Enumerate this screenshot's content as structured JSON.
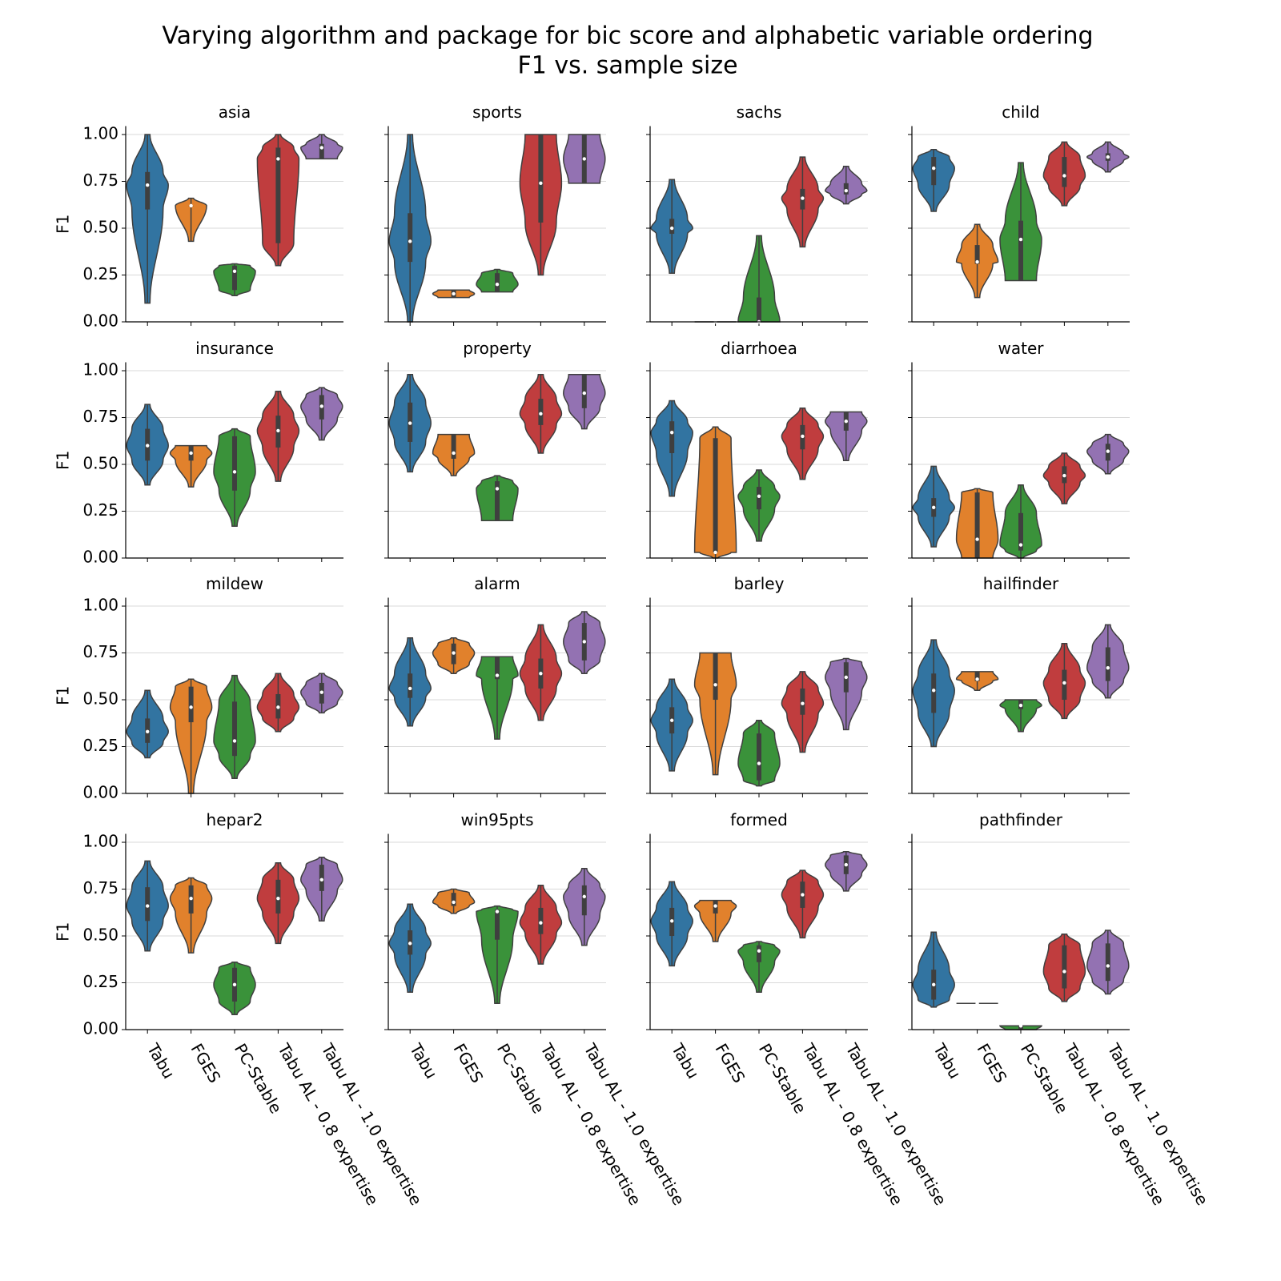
{
  "title": "Varying algorithm and package for bic score and alphabetic variable ordering",
  "subtitle": "F1 vs. sample size",
  "chart_data": [
    {
      "type": "violin",
      "title": "asia",
      "ylabel": "F1",
      "colors": [
        "#3274a1",
        "#e1812c",
        "#3a923a",
        "#c03d3e",
        "#9372b2"
      ],
      "ylim": [
        0,
        1.045
      ],
      "yticks": [
        {
          "value": 0,
          "label": "0.00"
        },
        {
          "value": 0.25,
          "label": "0.25"
        },
        {
          "value": 0.5,
          "label": "0.50"
        },
        {
          "value": 0.75,
          "label": "0.75"
        },
        {
          "value": 1,
          "label": "1.00"
        }
      ],
      "stats": [
        [
          0.1,
          0.6,
          0.73,
          0.8,
          1.0
        ],
        [
          0.43,
          0.62,
          0.62,
          0.62,
          0.66
        ],
        [
          0.14,
          0.17,
          0.27,
          0.3,
          0.31
        ],
        [
          0.3,
          0.42,
          0.87,
          0.93,
          1.0
        ],
        [
          0.87,
          0.87,
          0.93,
          0.95,
          1.0
        ]
      ]
    },
    {
      "type": "violin",
      "title": "sports",
      "colors": [
        "#3274a1",
        "#e1812c",
        "#3a923a",
        "#c03d3e",
        "#9372b2"
      ],
      "ylim": [
        0,
        1.045
      ],
      "yticks": [
        0,
        0.25,
        0.5,
        0.75,
        1
      ],
      "stats": [
        [
          0,
          0.32,
          0.43,
          0.58,
          1.0
        ],
        [
          0.13,
          0.13,
          0.15,
          0.17,
          0.17
        ],
        [
          0.16,
          0.16,
          0.2,
          0.26,
          0.28
        ],
        [
          0.25,
          0.53,
          0.74,
          1.0,
          1.0
        ],
        [
          0.74,
          0.74,
          0.87,
          1.0,
          1.0
        ]
      ]
    },
    {
      "type": "violin",
      "title": "sachs",
      "colors": [
        "#3274a1",
        "#e1812c",
        "#3a923a",
        "#c03d3e",
        "#9372b2"
      ],
      "ylim": [
        0,
        1.045
      ],
      "yticks": [
        0,
        0.25,
        0.5,
        0.75,
        1
      ],
      "stats": [
        [
          0.26,
          0.47,
          0.5,
          0.55,
          0.76
        ],
        [
          0,
          0,
          0,
          0,
          0
        ],
        [
          0,
          0,
          0,
          0.13,
          0.46
        ],
        [
          0.4,
          0.6,
          0.66,
          0.71,
          0.88
        ],
        [
          0.63,
          0.68,
          0.7,
          0.74,
          0.83
        ]
      ]
    },
    {
      "type": "violin",
      "title": "child",
      "colors": [
        "#3274a1",
        "#e1812c",
        "#3a923a",
        "#c03d3e",
        "#9372b2"
      ],
      "ylim": [
        0,
        1.045
      ],
      "yticks": [
        0,
        0.25,
        0.5,
        0.75,
        1
      ],
      "stats": [
        [
          0.59,
          0.73,
          0.82,
          0.88,
          0.92
        ],
        [
          0.13,
          0.31,
          0.32,
          0.41,
          0.52
        ],
        [
          0.22,
          0.22,
          0.44,
          0.54,
          0.85
        ],
        [
          0.62,
          0.72,
          0.78,
          0.88,
          0.96
        ],
        [
          0.8,
          0.86,
          0.88,
          0.9,
          0.96
        ]
      ]
    },
    {
      "type": "violin",
      "title": "insurance",
      "ylabel": "F1",
      "colors": [
        "#3274a1",
        "#e1812c",
        "#3a923a",
        "#c03d3e",
        "#9372b2"
      ],
      "ylim": [
        0,
        1.045
      ],
      "yticks": [
        {
          "value": 0,
          "label": "0.00"
        },
        {
          "value": 0.25,
          "label": "0.25"
        },
        {
          "value": 0.5,
          "label": "0.50"
        },
        {
          "value": 0.75,
          "label": "0.75"
        },
        {
          "value": 1,
          "label": "1.00"
        }
      ],
      "stats": [
        [
          0.39,
          0.52,
          0.6,
          0.69,
          0.82
        ],
        [
          0.38,
          0.52,
          0.56,
          0.6,
          0.6
        ],
        [
          0.17,
          0.36,
          0.46,
          0.65,
          0.69
        ],
        [
          0.41,
          0.59,
          0.68,
          0.76,
          0.89
        ],
        [
          0.63,
          0.74,
          0.81,
          0.87,
          0.91
        ]
      ]
    },
    {
      "type": "violin",
      "title": "property",
      "colors": [
        "#3274a1",
        "#e1812c",
        "#3a923a",
        "#c03d3e",
        "#9372b2"
      ],
      "ylim": [
        0,
        1.045
      ],
      "yticks": [
        0,
        0.25,
        0.5,
        0.75,
        1
      ],
      "stats": [
        [
          0.46,
          0.62,
          0.72,
          0.83,
          0.98
        ],
        [
          0.44,
          0.53,
          0.56,
          0.66,
          0.66
        ],
        [
          0.2,
          0.2,
          0.37,
          0.41,
          0.44
        ],
        [
          0.56,
          0.71,
          0.77,
          0.85,
          0.98
        ],
        [
          0.69,
          0.8,
          0.88,
          0.98,
          0.98
        ]
      ]
    },
    {
      "type": "violin",
      "title": "diarrhoea",
      "colors": [
        "#3274a1",
        "#e1812c",
        "#3a923a",
        "#c03d3e",
        "#9372b2"
      ],
      "ylim": [
        0,
        1.045
      ],
      "yticks": [
        0,
        0.25,
        0.5,
        0.75,
        1
      ],
      "stats": [
        [
          0.33,
          0.56,
          0.67,
          0.73,
          0.84
        ],
        [
          0,
          0.03,
          0.03,
          0.64,
          0.7
        ],
        [
          0.09,
          0.26,
          0.33,
          0.38,
          0.47
        ],
        [
          0.42,
          0.58,
          0.65,
          0.71,
          0.8
        ],
        [
          0.52,
          0.68,
          0.73,
          0.78,
          0.78
        ]
      ]
    },
    {
      "type": "violin",
      "title": "water",
      "colors": [
        "#3274a1",
        "#e1812c",
        "#3a923a",
        "#c03d3e",
        "#9372b2"
      ],
      "ylim": [
        0,
        1.045
      ],
      "yticks": [
        0,
        0.25,
        0.5,
        0.75,
        1
      ],
      "stats": [
        [
          0.06,
          0.22,
          0.27,
          0.32,
          0.49
        ],
        [
          0,
          0,
          0.1,
          0.35,
          0.37
        ],
        [
          0,
          0.04,
          0.07,
          0.24,
          0.39
        ],
        [
          0.29,
          0.4,
          0.44,
          0.49,
          0.56
        ],
        [
          0.45,
          0.52,
          0.57,
          0.61,
          0.66
        ]
      ]
    },
    {
      "type": "violin",
      "title": "mildew",
      "ylabel": "F1",
      "colors": [
        "#3274a1",
        "#e1812c",
        "#3a923a",
        "#c03d3e",
        "#9372b2"
      ],
      "ylim": [
        0,
        1.045
      ],
      "yticks": [
        {
          "value": 0,
          "label": "0.00"
        },
        {
          "value": 0.25,
          "label": "0.25"
        },
        {
          "value": 0.5,
          "label": "0.50"
        },
        {
          "value": 0.75,
          "label": "0.75"
        },
        {
          "value": 1,
          "label": "1.00"
        }
      ],
      "stats": [
        [
          0.19,
          0.27,
          0.33,
          0.4,
          0.55
        ],
        [
          0,
          0.38,
          0.46,
          0.57,
          0.61
        ],
        [
          0.08,
          0.2,
          0.28,
          0.49,
          0.63
        ],
        [
          0.33,
          0.4,
          0.46,
          0.53,
          0.64
        ],
        [
          0.43,
          0.48,
          0.54,
          0.59,
          0.64
        ]
      ]
    },
    {
      "type": "violin",
      "title": "alarm",
      "colors": [
        "#3274a1",
        "#e1812c",
        "#3a923a",
        "#c03d3e",
        "#9372b2"
      ],
      "ylim": [
        0,
        1.045
      ],
      "yticks": [
        0,
        0.25,
        0.5,
        0.75,
        1
      ],
      "stats": [
        [
          0.36,
          0.51,
          0.56,
          0.64,
          0.83
        ],
        [
          0.64,
          0.69,
          0.75,
          0.8,
          0.83
        ],
        [
          0.29,
          0.61,
          0.63,
          0.73,
          0.73
        ],
        [
          0.39,
          0.56,
          0.64,
          0.72,
          0.9
        ],
        [
          0.64,
          0.71,
          0.81,
          0.91,
          0.97
        ]
      ]
    },
    {
      "type": "violin",
      "title": "barley",
      "colors": [
        "#3274a1",
        "#e1812c",
        "#3a923a",
        "#c03d3e",
        "#9372b2"
      ],
      "ylim": [
        0,
        1.045
      ],
      "yticks": [
        0,
        0.25,
        0.5,
        0.75,
        1
      ],
      "stats": [
        [
          0.12,
          0.32,
          0.39,
          0.46,
          0.61
        ],
        [
          0.1,
          0.5,
          0.58,
          0.75,
          0.75
        ],
        [
          0.04,
          0.07,
          0.16,
          0.32,
          0.39
        ],
        [
          0.22,
          0.42,
          0.48,
          0.56,
          0.65
        ],
        [
          0.34,
          0.54,
          0.62,
          0.7,
          0.72
        ]
      ]
    },
    {
      "type": "violin",
      "title": "hailfinder",
      "colors": [
        "#3274a1",
        "#e1812c",
        "#3a923a",
        "#c03d3e",
        "#9372b2"
      ],
      "ylim": [
        0,
        1.045
      ],
      "yticks": [
        0,
        0.25,
        0.5,
        0.75,
        1
      ],
      "stats": [
        [
          0.25,
          0.43,
          0.55,
          0.64,
          0.82
        ],
        [
          0.55,
          0.6,
          0.61,
          0.65,
          0.65
        ],
        [
          0.33,
          0.45,
          0.47,
          0.5,
          0.5
        ],
        [
          0.4,
          0.5,
          0.59,
          0.66,
          0.8
        ],
        [
          0.51,
          0.6,
          0.67,
          0.78,
          0.9
        ]
      ]
    },
    {
      "type": "violin",
      "title": "hepar2",
      "ylabel": "F1",
      "colors": [
        "#3274a1",
        "#e1812c",
        "#3a923a",
        "#c03d3e",
        "#9372b2"
      ],
      "categories": [
        "Tabu",
        "FGES",
        "PC-Stable",
        "Tabu AL - 0.8 expertise",
        "Tabu AL - 1.0 expertise"
      ],
      "ylim": [
        0,
        1.045
      ],
      "yticks": [
        {
          "value": 0,
          "label": "0.00"
        },
        {
          "value": 0.25,
          "label": "0.25"
        },
        {
          "value": 0.5,
          "label": "0.50"
        },
        {
          "value": 0.75,
          "label": "0.75"
        },
        {
          "value": 1,
          "label": "1.00"
        }
      ],
      "stats": [
        [
          0.42,
          0.58,
          0.66,
          0.76,
          0.9
        ],
        [
          0.41,
          0.62,
          0.7,
          0.77,
          0.81
        ],
        [
          0.08,
          0.15,
          0.24,
          0.33,
          0.36
        ],
        [
          0.46,
          0.62,
          0.7,
          0.8,
          0.89
        ],
        [
          0.58,
          0.74,
          0.8,
          0.88,
          0.92
        ]
      ]
    },
    {
      "type": "violin",
      "title": "win95pts",
      "colors": [
        "#3274a1",
        "#e1812c",
        "#3a923a",
        "#c03d3e",
        "#9372b2"
      ],
      "categories": [
        "Tabu",
        "FGES",
        "PC-Stable",
        "Tabu AL - 0.8 expertise",
        "Tabu AL - 1.0 expertise"
      ],
      "ylim": [
        0,
        1.045
      ],
      "yticks": [
        0,
        0.25,
        0.5,
        0.75,
        1
      ],
      "stats": [
        [
          0.2,
          0.4,
          0.46,
          0.53,
          0.67
        ],
        [
          0.62,
          0.66,
          0.68,
          0.73,
          0.75
        ],
        [
          0.14,
          0.48,
          0.63,
          0.64,
          0.66
        ],
        [
          0.35,
          0.51,
          0.57,
          0.65,
          0.77
        ],
        [
          0.45,
          0.61,
          0.71,
          0.77,
          0.86
        ]
      ]
    },
    {
      "type": "violin",
      "title": "formed",
      "colors": [
        "#3274a1",
        "#e1812c",
        "#3a923a",
        "#c03d3e",
        "#9372b2"
      ],
      "categories": [
        "Tabu",
        "FGES",
        "PC-Stable",
        "Tabu AL - 0.8 expertise",
        "Tabu AL - 1.0 expertise"
      ],
      "ylim": [
        0,
        1.045
      ],
      "yticks": [
        0,
        0.25,
        0.5,
        0.75,
        1
      ],
      "stats": [
        [
          0.34,
          0.5,
          0.58,
          0.65,
          0.79
        ],
        [
          0.47,
          0.62,
          0.66,
          0.69,
          0.69
        ],
        [
          0.2,
          0.36,
          0.42,
          0.45,
          0.47
        ],
        [
          0.49,
          0.65,
          0.72,
          0.79,
          0.85
        ],
        [
          0.74,
          0.83,
          0.88,
          0.93,
          0.95
        ]
      ]
    },
    {
      "type": "violin",
      "title": "pathfinder",
      "colors": [
        "#3274a1",
        "#e1812c",
        "#3a923a",
        "#c03d3e",
        "#9372b2"
      ],
      "categories": [
        "Tabu",
        "FGES",
        "PC-Stable",
        "Tabu AL - 0.8 expertise",
        "Tabu AL - 1.0 expertise"
      ],
      "ylim": [
        0,
        1.045
      ],
      "yticks": [
        0,
        0.25,
        0.5,
        0.75,
        1
      ],
      "stats": [
        [
          0.12,
          0.16,
          0.24,
          0.32,
          0.52
        ],
        [
          0.14,
          0.14,
          0.14,
          0.14,
          0.14
        ],
        [
          0,
          0,
          0.02,
          0.02,
          0.02
        ],
        [
          0.15,
          0.22,
          0.31,
          0.45,
          0.51
        ],
        [
          0.19,
          0.26,
          0.34,
          0.46,
          0.53
        ]
      ]
    }
  ]
}
